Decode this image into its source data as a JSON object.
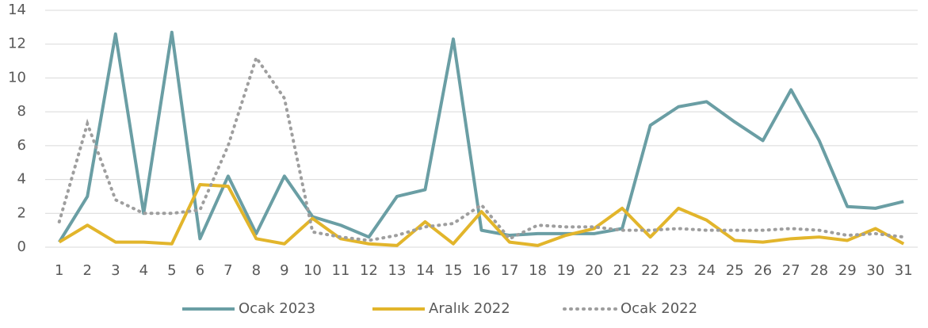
{
  "chart_data": {
    "type": "line",
    "categories": [
      "1",
      "2",
      "3",
      "4",
      "5",
      "6",
      "7",
      "8",
      "9",
      "10",
      "11",
      "12",
      "13",
      "14",
      "15",
      "16",
      "17",
      "18",
      "19",
      "20",
      "21",
      "22",
      "23",
      "24",
      "25",
      "26",
      "27",
      "28",
      "29",
      "30",
      "31"
    ],
    "series": [
      {
        "name": "Ocak 2023",
        "color": "#6a9ea4",
        "style": "solid",
        "values": [
          0.3,
          3.0,
          12.6,
          2.0,
          12.7,
          0.5,
          4.2,
          0.8,
          4.2,
          1.8,
          1.3,
          0.6,
          3.0,
          3.4,
          12.3,
          1.0,
          0.7,
          0.8,
          0.8,
          0.8,
          1.1,
          7.2,
          8.3,
          8.6,
          7.4,
          6.3,
          9.3,
          6.3,
          2.4,
          2.3,
          2.7
        ]
      },
      {
        "name": "Aralık 2022",
        "color": "#e2b52b",
        "style": "solid",
        "values": [
          0.3,
          1.3,
          0.3,
          0.3,
          0.2,
          3.7,
          3.6,
          0.5,
          0.2,
          1.7,
          0.5,
          0.2,
          0.1,
          1.5,
          0.2,
          2.1,
          0.3,
          0.1,
          0.7,
          1.1,
          2.3,
          0.6,
          2.3,
          1.6,
          0.4,
          0.3,
          0.5,
          0.6,
          0.4,
          1.1,
          0.2
        ]
      },
      {
        "name": "Ocak 2022",
        "color": "#9e9e9e",
        "style": "dotted",
        "values": [
          1.5,
          7.3,
          2.8,
          2.0,
          2.0,
          2.2,
          6.0,
          11.2,
          8.8,
          0.9,
          0.6,
          0.4,
          0.7,
          1.2,
          1.4,
          2.5,
          0.5,
          1.3,
          1.2,
          1.2,
          1.0,
          1.0,
          1.1,
          1.0,
          1.0,
          1.0,
          1.1,
          1.0,
          0.7,
          0.8,
          0.6
        ]
      }
    ],
    "ylim": [
      0,
      14
    ],
    "yticks": [
      0,
      2,
      4,
      6,
      8,
      10,
      12,
      14
    ],
    "grid": true,
    "legend": "bottom"
  }
}
